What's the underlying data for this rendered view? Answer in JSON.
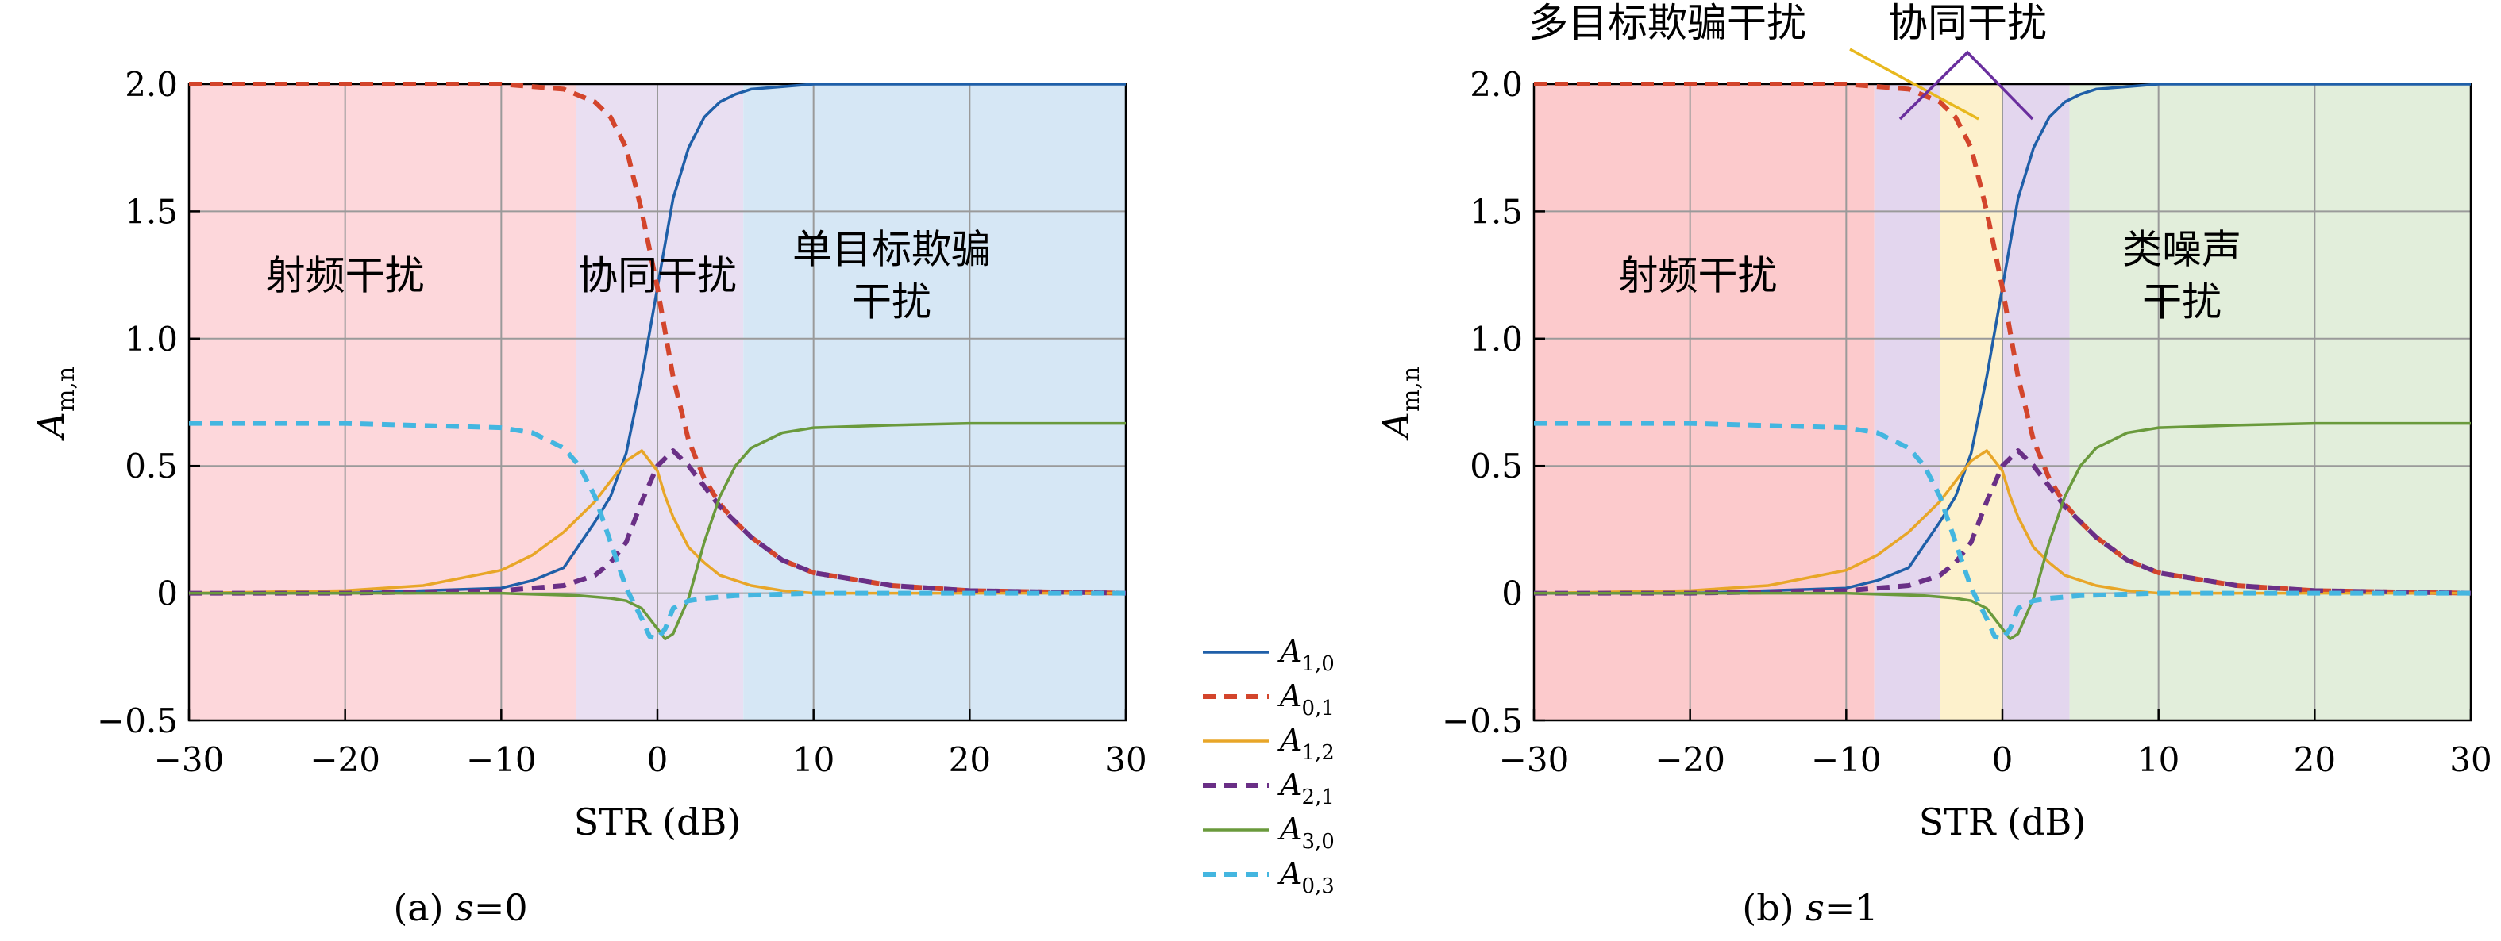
{
  "chart_data": [
    {
      "type": "line",
      "caption": "(a) s=0",
      "xlabel": "STR (dB)",
      "ylabel": "A_{m,n}",
      "xlim": [
        -30,
        30
      ],
      "ylim": [
        -0.5,
        2.0
      ],
      "xticks": [
        "−30",
        "−20",
        "−10",
        "0",
        "10",
        "20",
        "30"
      ],
      "yticks": [
        "−0.5",
        "0",
        "0.5",
        "1.0",
        "1.5",
        "2.0"
      ],
      "grid": true,
      "regions": [
        {
          "x0": -30,
          "x1": -5.2,
          "color": "#fdd7db",
          "label": [
            "射频干扰"
          ]
        },
        {
          "x0": -5.2,
          "x1": 5.5,
          "color": "#e9dff2",
          "label": [
            "协同干扰"
          ]
        },
        {
          "x0": 5.5,
          "x1": 30,
          "color": "#d6e7f5",
          "label": [
            "单目标欺骗",
            "干扰"
          ]
        }
      ],
      "series": [
        {
          "name": "A_{1,0}",
          "color": "#1f5fa8",
          "dash": false,
          "x": [
            -30,
            -20,
            -15,
            -10,
            -8,
            -6,
            -4,
            -3,
            -2,
            -1,
            0,
            1,
            2,
            3,
            4,
            5,
            6,
            8,
            10,
            15,
            20,
            30
          ],
          "y": [
            0,
            0,
            0.01,
            0.02,
            0.05,
            0.1,
            0.28,
            0.38,
            0.55,
            0.85,
            1.2,
            1.55,
            1.75,
            1.87,
            1.93,
            1.96,
            1.98,
            1.99,
            2.0,
            2.0,
            2.0,
            2.0
          ]
        },
        {
          "name": "A_{0,1}",
          "color": "#d3452c",
          "dash": true,
          "x": [
            -30,
            -20,
            -10,
            -6,
            -4,
            -3,
            -2,
            -1,
            0,
            1,
            2,
            3,
            4,
            5,
            6,
            8,
            10,
            15,
            20,
            30
          ],
          "y": [
            2.0,
            2.0,
            2.0,
            1.98,
            1.93,
            1.87,
            1.75,
            1.5,
            1.2,
            0.85,
            0.6,
            0.45,
            0.35,
            0.28,
            0.22,
            0.13,
            0.08,
            0.03,
            0.01,
            0.0
          ]
        },
        {
          "name": "A_{1,2}",
          "color": "#e8a628",
          "dash": false,
          "x": [
            -30,
            -20,
            -15,
            -10,
            -8,
            -6,
            -4,
            -3,
            -2,
            -1,
            0,
            0.5,
            1,
            2,
            3,
            4,
            6,
            8,
            10,
            15,
            30
          ],
          "y": [
            0,
            0.01,
            0.03,
            0.09,
            0.15,
            0.24,
            0.36,
            0.44,
            0.52,
            0.56,
            0.48,
            0.38,
            0.3,
            0.18,
            0.12,
            0.07,
            0.03,
            0.01,
            0.0,
            0.0,
            0.0
          ]
        },
        {
          "name": "A_{2,1}",
          "color": "#6a2f86",
          "dash": true,
          "x": [
            -30,
            -20,
            -10,
            -6,
            -4,
            -3,
            -2,
            -1,
            0,
            1,
            2,
            3,
            4,
            6,
            8,
            10,
            15,
            20,
            30
          ],
          "y": [
            0,
            0,
            0.01,
            0.03,
            0.07,
            0.12,
            0.2,
            0.36,
            0.5,
            0.56,
            0.5,
            0.42,
            0.34,
            0.22,
            0.13,
            0.08,
            0.03,
            0.01,
            0.0
          ]
        },
        {
          "name": "A_{3,0}",
          "color": "#6a9a3c",
          "dash": false,
          "x": [
            -30,
            -20,
            -10,
            -5,
            -3,
            -2,
            -1,
            0,
            0.5,
            1,
            2,
            3,
            4,
            5,
            6,
            8,
            10,
            15,
            20,
            30
          ],
          "y": [
            0,
            0,
            0,
            -0.01,
            -0.02,
            -0.03,
            -0.06,
            -0.14,
            -0.18,
            -0.16,
            -0.02,
            0.2,
            0.38,
            0.5,
            0.57,
            0.63,
            0.65,
            0.66,
            0.667,
            0.667
          ]
        },
        {
          "name": "A_{0,3}",
          "color": "#44b6e0",
          "dash": true,
          "x": [
            -30,
            -20,
            -10,
            -8,
            -6,
            -5,
            -4,
            -3,
            -2,
            -1,
            -0.5,
            0,
            0.5,
            1,
            2,
            3,
            5,
            10,
            30
          ],
          "y": [
            0.667,
            0.667,
            0.65,
            0.63,
            0.57,
            0.5,
            0.38,
            0.2,
            0.02,
            -0.1,
            -0.17,
            -0.18,
            -0.14,
            -0.06,
            -0.03,
            -0.02,
            -0.01,
            0,
            0
          ]
        }
      ]
    },
    {
      "type": "line",
      "caption": "(b) s=1",
      "xlabel": "STR (dB)",
      "ylabel": "A_{m,n}",
      "xlim": [
        -30,
        30
      ],
      "ylim": [
        -0.5,
        2.0
      ],
      "xticks": [
        "−30",
        "−20",
        "−10",
        "0",
        "10",
        "20",
        "30"
      ],
      "yticks": [
        "−0.5",
        "0",
        "0.5",
        "1.0",
        "1.5",
        "2.0"
      ],
      "grid": true,
      "regions": [
        {
          "x0": -30,
          "x1": -8.2,
          "color": "#fccacc",
          "label": [
            "射频干扰"
          ]
        },
        {
          "x0": -8.2,
          "x1": -4,
          "color": "#e3d6ee",
          "label": []
        },
        {
          "x0": -4,
          "x1": 0,
          "color": "#fdf1cc",
          "label": []
        },
        {
          "x0": 0,
          "x1": 4.3,
          "color": "#e3d6ee",
          "label": []
        },
        {
          "x0": 4.3,
          "x1": 30,
          "color": "#e2eedb",
          "label": [
            "类噪声",
            "干扰"
          ]
        }
      ],
      "annotations": [
        {
          "text": "多目标欺骗干扰",
          "color": "#e8b81e"
        },
        {
          "text": "协同干扰",
          "color": "#6a2f9e"
        }
      ],
      "series": [
        {
          "name": "A_{1,0}",
          "color": "#1f5fa8",
          "dash": false,
          "x": [
            -30,
            -20,
            -15,
            -10,
            -8,
            -6,
            -4,
            -3,
            -2,
            -1,
            0,
            1,
            2,
            3,
            4,
            5,
            6,
            8,
            10,
            15,
            20,
            30
          ],
          "y": [
            0,
            0,
            0.01,
            0.02,
            0.05,
            0.1,
            0.28,
            0.38,
            0.55,
            0.85,
            1.2,
            1.55,
            1.75,
            1.87,
            1.93,
            1.96,
            1.98,
            1.99,
            2.0,
            2.0,
            2.0,
            2.0
          ]
        },
        {
          "name": "A_{0,1}",
          "color": "#d3452c",
          "dash": true,
          "x": [
            -30,
            -20,
            -10,
            -6,
            -4,
            -3,
            -2,
            -1,
            0,
            1,
            2,
            3,
            4,
            5,
            6,
            8,
            10,
            15,
            20,
            30
          ],
          "y": [
            2.0,
            2.0,
            2.0,
            1.98,
            1.93,
            1.87,
            1.75,
            1.5,
            1.2,
            0.85,
            0.6,
            0.45,
            0.35,
            0.28,
            0.22,
            0.13,
            0.08,
            0.03,
            0.01,
            0.0
          ]
        },
        {
          "name": "A_{1,2}",
          "color": "#e8a628",
          "dash": false,
          "x": [
            -30,
            -20,
            -15,
            -10,
            -8,
            -6,
            -4,
            -3,
            -2,
            -1,
            0,
            0.5,
            1,
            2,
            3,
            4,
            6,
            8,
            10,
            15,
            30
          ],
          "y": [
            0,
            0.01,
            0.03,
            0.09,
            0.15,
            0.24,
            0.36,
            0.44,
            0.52,
            0.56,
            0.48,
            0.38,
            0.3,
            0.18,
            0.12,
            0.07,
            0.03,
            0.01,
            0.0,
            0.0,
            0.0
          ]
        },
        {
          "name": "A_{2,1}",
          "color": "#6a2f86",
          "dash": true,
          "x": [
            -30,
            -20,
            -10,
            -6,
            -4,
            -3,
            -2,
            -1,
            0,
            1,
            2,
            3,
            4,
            6,
            8,
            10,
            15,
            20,
            30
          ],
          "y": [
            0,
            0,
            0.01,
            0.03,
            0.07,
            0.12,
            0.2,
            0.36,
            0.5,
            0.56,
            0.5,
            0.42,
            0.34,
            0.22,
            0.13,
            0.08,
            0.03,
            0.01,
            0.0
          ]
        },
        {
          "name": "A_{3,0}",
          "color": "#6a9a3c",
          "dash": false,
          "x": [
            -30,
            -20,
            -10,
            -5,
            -3,
            -2,
            -1,
            0,
            0.5,
            1,
            2,
            3,
            4,
            5,
            6,
            8,
            10,
            15,
            20,
            30
          ],
          "y": [
            0,
            0,
            0,
            -0.01,
            -0.02,
            -0.03,
            -0.06,
            -0.14,
            -0.18,
            -0.16,
            -0.02,
            0.2,
            0.38,
            0.5,
            0.57,
            0.63,
            0.65,
            0.66,
            0.667,
            0.667
          ]
        },
        {
          "name": "A_{0,3}",
          "color": "#44b6e0",
          "dash": true,
          "x": [
            -30,
            -20,
            -10,
            -8,
            -6,
            -5,
            -4,
            -3,
            -2,
            -1,
            -0.5,
            0,
            0.5,
            1,
            2,
            3,
            5,
            10,
            30
          ],
          "y": [
            0.667,
            0.667,
            0.65,
            0.63,
            0.57,
            0.5,
            0.38,
            0.2,
            0.02,
            -0.1,
            -0.17,
            -0.18,
            -0.14,
            -0.06,
            -0.03,
            -0.02,
            -0.01,
            0,
            0
          ]
        }
      ]
    }
  ],
  "legend": {
    "position": "between-panels",
    "entries": [
      {
        "label": "A_{1,0}",
        "color": "#1f5fa8",
        "dash": false
      },
      {
        "label": "A_{0,1}",
        "color": "#d3452c",
        "dash": true
      },
      {
        "label": "A_{1,2}",
        "color": "#e8a628",
        "dash": false
      },
      {
        "label": "A_{2,1}",
        "color": "#6a2f86",
        "dash": true
      },
      {
        "label": "A_{3,0}",
        "color": "#6a9a3c",
        "dash": false
      },
      {
        "label": "A_{0,3}",
        "color": "#44b6e0",
        "dash": true
      }
    ]
  }
}
